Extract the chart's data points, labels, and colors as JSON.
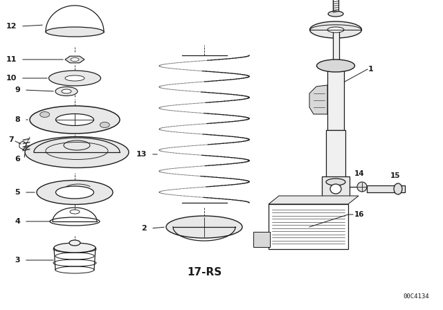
{
  "bg_color": "#ffffff",
  "line_color": "#1a1a1a",
  "diagram_label": "17-RS",
  "part_id": "00C4134",
  "figsize": [
    6.4,
    4.48
  ],
  "dpi": 100
}
